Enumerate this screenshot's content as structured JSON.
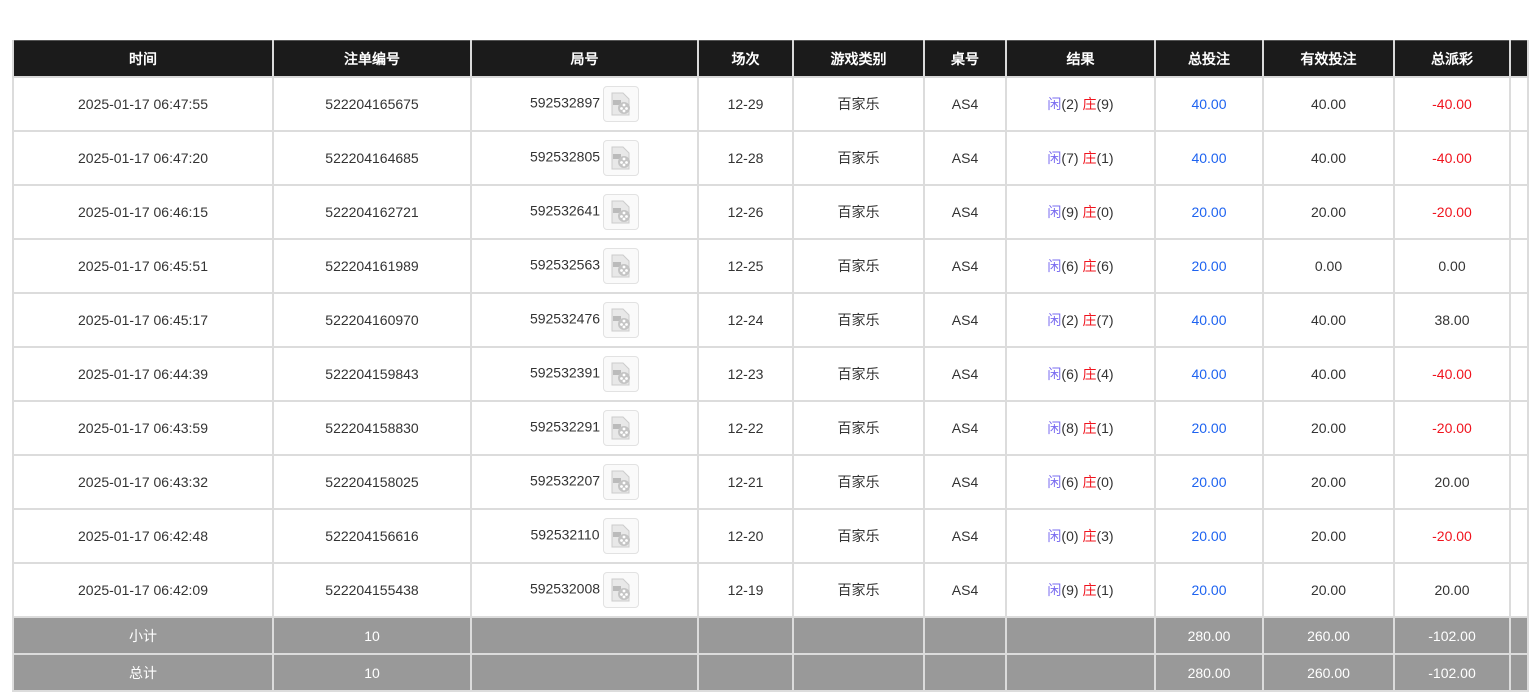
{
  "columns": [
    "时间",
    "注单编号",
    "局号",
    "场次",
    "游戏类别",
    "桌号",
    "结果",
    "总投注",
    "有效投注",
    "总派彩",
    ""
  ],
  "result_labels": {
    "player": "闲",
    "banker": "庄"
  },
  "rows": [
    {
      "time": "2025-01-17 06:47:55",
      "bet_id": "522204165675",
      "round": "592532897",
      "shoe": "12-29",
      "game": "百家乐",
      "table": "AS4",
      "p": "(2)",
      "b": "(9)",
      "total": "40.00",
      "valid": "40.00",
      "payout": "-40.00",
      "neg": true
    },
    {
      "time": "2025-01-17 06:47:20",
      "bet_id": "522204164685",
      "round": "592532805",
      "shoe": "12-28",
      "game": "百家乐",
      "table": "AS4",
      "p": "(7)",
      "b": "(1)",
      "total": "40.00",
      "valid": "40.00",
      "payout": "-40.00",
      "neg": true
    },
    {
      "time": "2025-01-17 06:46:15",
      "bet_id": "522204162721",
      "round": "592532641",
      "shoe": "12-26",
      "game": "百家乐",
      "table": "AS4",
      "p": "(9)",
      "b": "(0)",
      "total": "20.00",
      "valid": "20.00",
      "payout": "-20.00",
      "neg": true
    },
    {
      "time": "2025-01-17 06:45:51",
      "bet_id": "522204161989",
      "round": "592532563",
      "shoe": "12-25",
      "game": "百家乐",
      "table": "AS4",
      "p": "(6)",
      "b": "(6)",
      "total": "20.00",
      "valid": "0.00",
      "payout": "0.00",
      "neg": false
    },
    {
      "time": "2025-01-17 06:45:17",
      "bet_id": "522204160970",
      "round": "592532476",
      "shoe": "12-24",
      "game": "百家乐",
      "table": "AS4",
      "p": "(2)",
      "b": "(7)",
      "total": "40.00",
      "valid": "40.00",
      "payout": "38.00",
      "neg": false
    },
    {
      "time": "2025-01-17 06:44:39",
      "bet_id": "522204159843",
      "round": "592532391",
      "shoe": "12-23",
      "game": "百家乐",
      "table": "AS4",
      "p": "(6)",
      "b": "(4)",
      "total": "40.00",
      "valid": "40.00",
      "payout": "-40.00",
      "neg": true
    },
    {
      "time": "2025-01-17 06:43:59",
      "bet_id": "522204158830",
      "round": "592532291",
      "shoe": "12-22",
      "game": "百家乐",
      "table": "AS4",
      "p": "(8)",
      "b": "(1)",
      "total": "20.00",
      "valid": "20.00",
      "payout": "-20.00",
      "neg": true
    },
    {
      "time": "2025-01-17 06:43:32",
      "bet_id": "522204158025",
      "round": "592532207",
      "shoe": "12-21",
      "game": "百家乐",
      "table": "AS4",
      "p": "(6)",
      "b": "(0)",
      "total": "20.00",
      "valid": "20.00",
      "payout": "20.00",
      "neg": false
    },
    {
      "time": "2025-01-17 06:42:48",
      "bet_id": "522204156616",
      "round": "592532110",
      "shoe": "12-20",
      "game": "百家乐",
      "table": "AS4",
      "p": "(0)",
      "b": "(3)",
      "total": "20.00",
      "valid": "20.00",
      "payout": "-20.00",
      "neg": true
    },
    {
      "time": "2025-01-17 06:42:09",
      "bet_id": "522204155438",
      "round": "592532008",
      "shoe": "12-19",
      "game": "百家乐",
      "table": "AS4",
      "p": "(9)",
      "b": "(1)",
      "total": "20.00",
      "valid": "20.00",
      "payout": "20.00",
      "neg": false
    }
  ],
  "subtotal": {
    "label": "小计",
    "count": "10",
    "total": "280.00",
    "valid": "260.00",
    "payout": "-102.00"
  },
  "grand_total": {
    "label": "总计",
    "count": "10",
    "total": "280.00",
    "valid": "260.00",
    "payout": "-102.00"
  },
  "colors": {
    "header_bg": "#1b1b1b",
    "bet_blue": "#1e63f0",
    "negative_red": "#f0141e",
    "summary_bg": "#999999"
  }
}
